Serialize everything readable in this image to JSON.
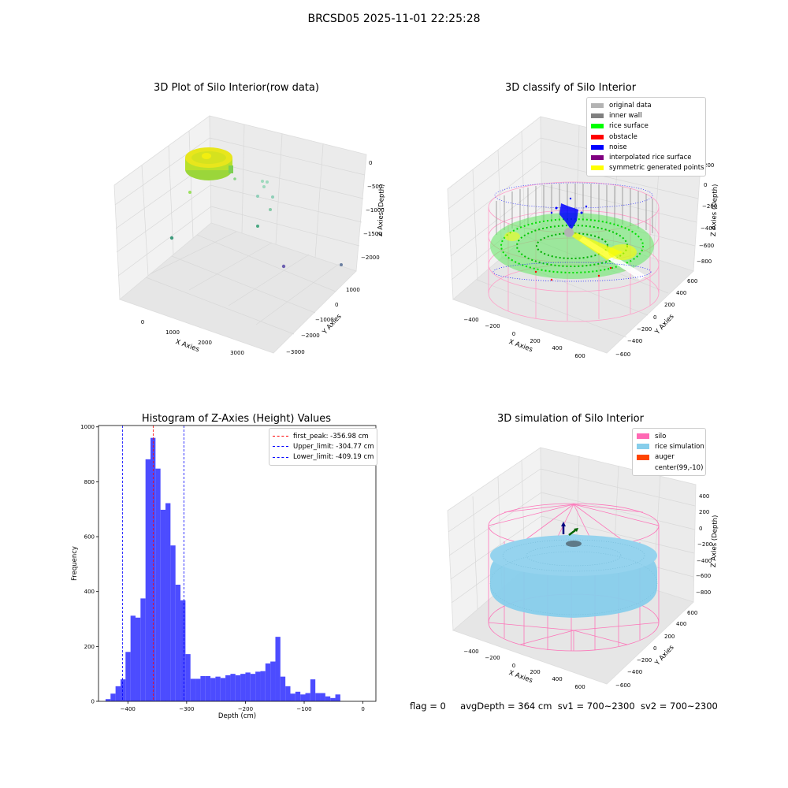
{
  "suptitle": "BRCSD05 2025-11-01 22:25:28",
  "panels": {
    "raw": {
      "title": "3D Plot of Silo Interior(row data)",
      "xlabel": "X Axies",
      "ylabel": "Y Axies",
      "zlabel": "Z Axies (Depth)",
      "xticks": [
        "0",
        "1000",
        "2000",
        "3000"
      ],
      "yticks": [
        "1000",
        "0",
        "−1000",
        "−2000",
        "−3000"
      ],
      "zticks": [
        "0",
        "−500",
        "−1000",
        "−1500",
        "−2000"
      ]
    },
    "classify": {
      "title": "3D classify of Silo Interior",
      "xlabel": "X Axies",
      "ylabel": "Y Axies",
      "zlabel": "Z Axies (Depth)",
      "xticks": [
        "−400",
        "−200",
        "0",
        "200",
        "400",
        "600"
      ],
      "yticks": [
        "600",
        "400",
        "200",
        "0",
        "−200",
        "−400",
        "−600"
      ],
      "zticks": [
        "200",
        "0",
        "−200",
        "−400",
        "−600",
        "−800"
      ],
      "legend": [
        {
          "label": "original data",
          "color": "#b3b3b3"
        },
        {
          "label": "inner wall",
          "color": "#808080"
        },
        {
          "label": "rice surface",
          "color": "#00ff00"
        },
        {
          "label": "obstacle",
          "color": "#ff0000"
        },
        {
          "label": "noise",
          "color": "#0000ff"
        },
        {
          "label": "interpolated rice surface",
          "color": "#800080"
        },
        {
          "label": "symmetric generated points",
          "color": "#ffff00"
        }
      ]
    },
    "simulation": {
      "title": "3D simulation of Silo Interior",
      "xlabel": "X Axies",
      "ylabel": "Y Axies",
      "zlabel": "Z Axies (Depth)",
      "xticks": [
        "−400",
        "−200",
        "0",
        "200",
        "400",
        "600"
      ],
      "yticks": [
        "600",
        "400",
        "200",
        "0",
        "−200",
        "−400",
        "−600"
      ],
      "zticks": [
        "400",
        "200",
        "0",
        "−200",
        "−400",
        "−600",
        "−800"
      ],
      "legend": [
        {
          "label": "silo",
          "color": "#ff69b4"
        },
        {
          "label": "rice simulation",
          "color": "#87ceeb"
        },
        {
          "label": "auger",
          "color": "#ff4500"
        },
        {
          "label": "center(99,-10)",
          "color": "#ffffff"
        }
      ]
    }
  },
  "footer": {
    "flag": "flag = 0",
    "avg_depth": "avgDepth = 364 cm",
    "sv1": "sv1 = 700~2300",
    "sv2": "sv2 = 700~2300"
  },
  "chart_data": {
    "type": "bar",
    "title": "Histogram of Z-Axies (Height) Values",
    "xlabel": "Depth (cm)",
    "ylabel": "Frequency",
    "xlim": [
      -450,
      22
    ],
    "ylim": [
      0,
      1005
    ],
    "xticks": [
      -400,
      -300,
      -200,
      -100,
      0
    ],
    "yticks": [
      0,
      200,
      400,
      600,
      800,
      1000
    ],
    "bin_width": 8.5,
    "bin_starts": [
      -438,
      -429.5,
      -421,
      -412.5,
      -404,
      -395.5,
      -387,
      -378.5,
      -370,
      -361.5,
      -353,
      -344.5,
      -336,
      -327.5,
      -319,
      -310.5,
      -302,
      -293.5,
      -285,
      -276.5,
      -268,
      -259.5,
      -251,
      -242.5,
      -234,
      -225.5,
      -217,
      -208.5,
      -200,
      -191.5,
      -183,
      -174.5,
      -166,
      -157.5,
      -149,
      -140.5,
      -132,
      -123.5,
      -115,
      -106.5,
      -98,
      -89.5,
      -81,
      -72.5,
      -64,
      -55.5,
      -47,
      -38.5,
      -30,
      -21.5,
      -13,
      -4.5
    ],
    "values": [
      8,
      28,
      55,
      80,
      180,
      312,
      305,
      375,
      882,
      960,
      848,
      698,
      722,
      568,
      425,
      368,
      172,
      82,
      82,
      92,
      92,
      85,
      90,
      85,
      95,
      100,
      95,
      100,
      105,
      100,
      108,
      110,
      138,
      145,
      235,
      90,
      55,
      28,
      35,
      25,
      30,
      80,
      30,
      30,
      18,
      12,
      25,
      0,
      0,
      0,
      0,
      0
    ],
    "lines": [
      {
        "label": "first_peak: -356.98 cm",
        "value": -356.98,
        "color": "#ff0000"
      },
      {
        "label": "Upper_limit: -304.77 cm",
        "value": -304.77,
        "color": "#0000ff"
      },
      {
        "label": "Lower_limit: -409.19 cm",
        "value": -409.19,
        "color": "#0000ff"
      }
    ],
    "bar_color": "#4c4cff",
    "legend_position": "top-right",
    "grid": false
  }
}
